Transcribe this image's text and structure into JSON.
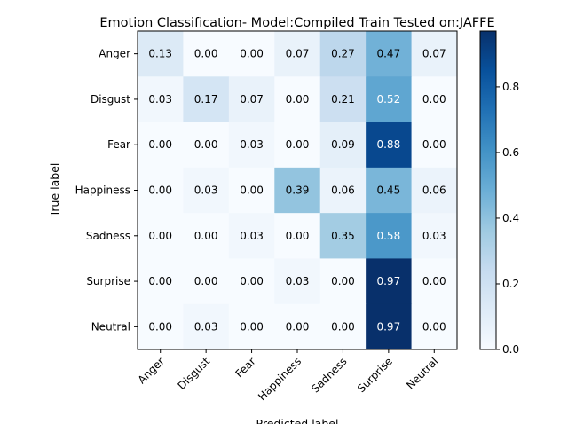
{
  "chart_data": {
    "type": "heatmap",
    "title": "Emotion Classification- Model:Compiled Train Tested on:JAFFE",
    "xlabel": "Predicted label",
    "ylabel": "True label",
    "x_categories": [
      "Anger",
      "Disgust",
      "Fear",
      "Happiness",
      "Sadness",
      "Surprise",
      "Neutral"
    ],
    "y_categories": [
      "Anger",
      "Disgust",
      "Fear",
      "Happiness",
      "Sadness",
      "Surprise",
      "Neutral"
    ],
    "values": [
      [
        0.13,
        0.0,
        0.0,
        0.07,
        0.27,
        0.47,
        0.07
      ],
      [
        0.03,
        0.17,
        0.07,
        0.0,
        0.21,
        0.52,
        0.0
      ],
      [
        0.0,
        0.0,
        0.03,
        0.0,
        0.09,
        0.88,
        0.0
      ],
      [
        0.0,
        0.03,
        0.0,
        0.39,
        0.06,
        0.45,
        0.06
      ],
      [
        0.0,
        0.0,
        0.03,
        0.0,
        0.35,
        0.58,
        0.03
      ],
      [
        0.0,
        0.0,
        0.0,
        0.03,
        0.0,
        0.97,
        0.0
      ],
      [
        0.0,
        0.03,
        0.0,
        0.0,
        0.0,
        0.97,
        0.0
      ]
    ],
    "colormap": "Blues",
    "color_range": [
      0.0,
      0.97
    ],
    "colorbar_ticks": [
      0.0,
      0.2,
      0.4,
      0.6,
      0.8
    ],
    "colorbar_tick_labels": [
      "0.0",
      "0.2",
      "0.4",
      "0.6",
      "0.8"
    ],
    "grid": false,
    "colorbar_position": "right"
  }
}
